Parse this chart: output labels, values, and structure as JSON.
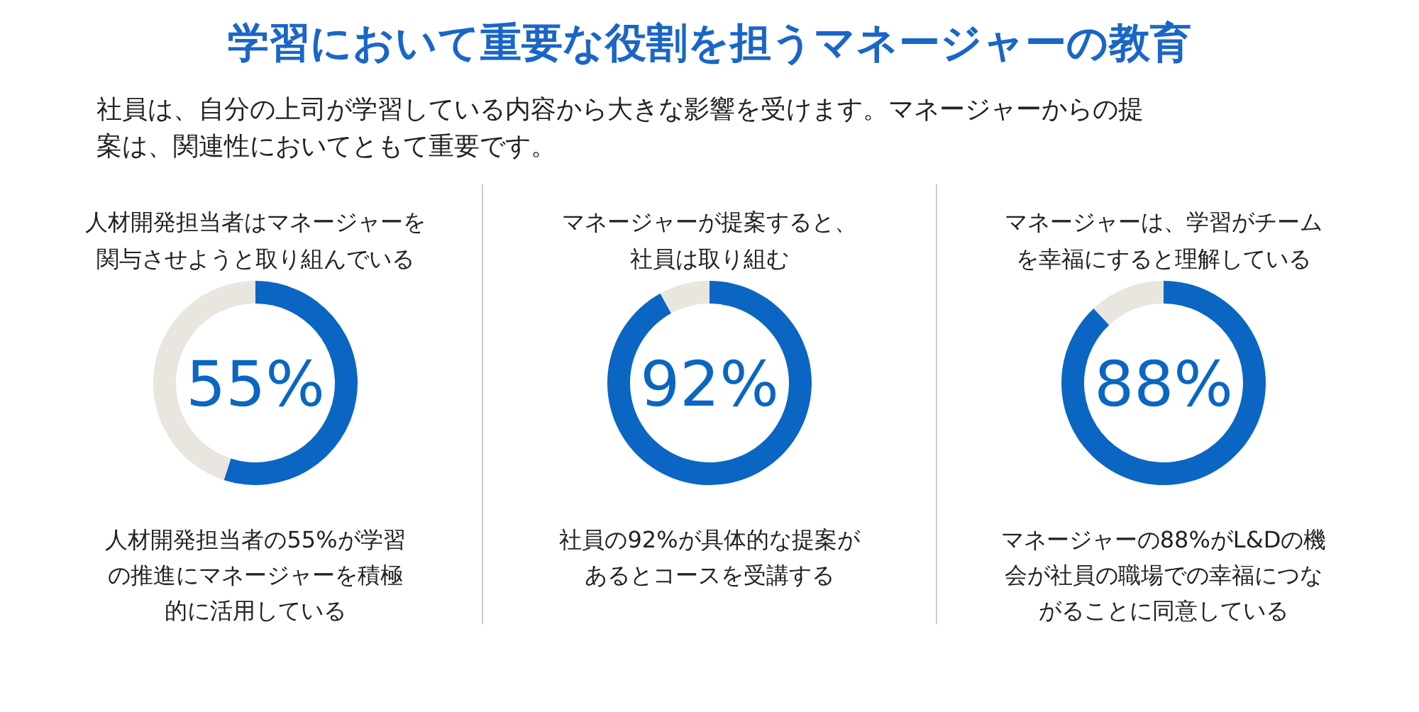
{
  "chart_data": [
    {
      "type": "other",
      "title": "学習において重要な役割を担うマネージャーの教育",
      "subtitle": "社員は、自分の上司が学習している内容から大きな影響を受けます。マネージャーからの提案は、関連性においてともて重要です。"
    },
    {
      "type": "donut",
      "title": "人材開発担当者はマネージャーを関与させようと取り組んでいる",
      "categories": [
        null,
        null
      ],
      "values": [
        55,
        45
      ],
      "colors": [
        "#0a66c2",
        "#e9e6e0"
      ],
      "value_labels": [
        "55%",
        null
      ],
      "annotations": [
        "人材開発担当者の55%が学習の推進にマネージャーを積極的に活用している"
      ]
    },
    {
      "type": "donut",
      "title": "マネージャーが提案すると、社員は取り組む",
      "categories": [
        null,
        null
      ],
      "values": [
        92,
        8
      ],
      "colors": [
        "#0a66c2",
        "#e9e6e0"
      ],
      "value_labels": [
        "92%",
        null
      ],
      "annotations": [
        "社員の92%が具体的な提案があるとコースを受講する"
      ]
    },
    {
      "type": "donut",
      "title": "マネージャーは、学習がチームを幸福にすると理解している",
      "categories": [
        null,
        null
      ],
      "values": [
        88,
        12
      ],
      "colors": [
        "#0a66c2",
        "#e9e6e0"
      ],
      "value_labels": [
        "88%",
        null
      ],
      "annotations": [
        "マネージャーの88%がL&Dの機会が社員の職場での幸福につながることに同意している"
      ]
    }
  ]
}
